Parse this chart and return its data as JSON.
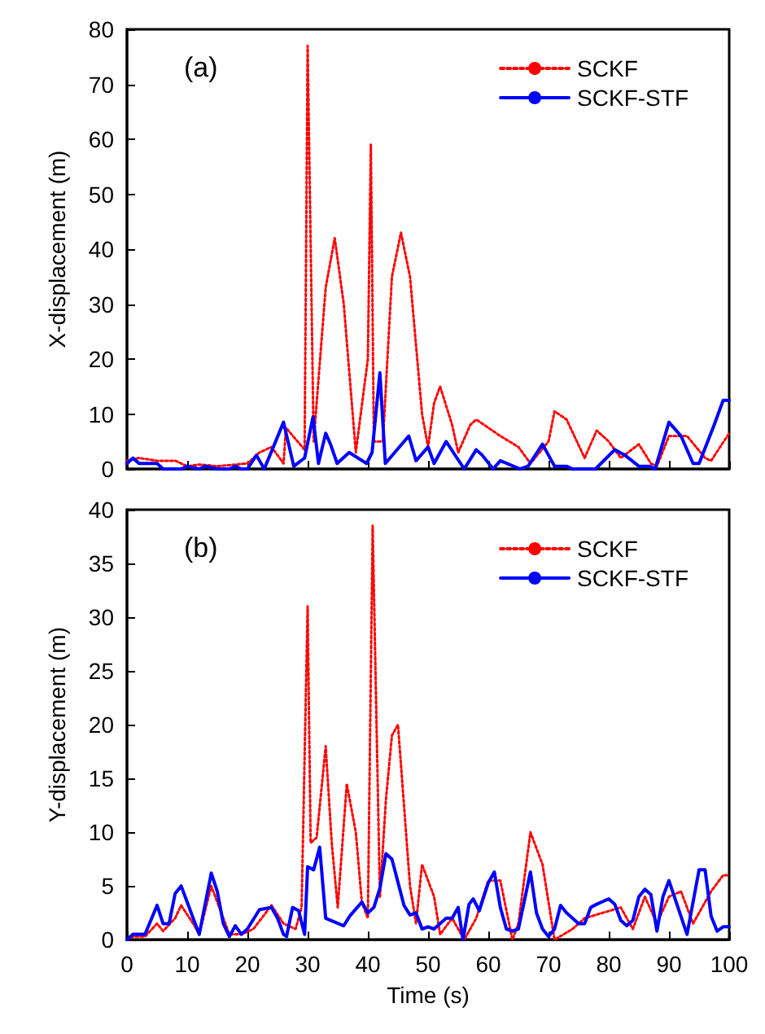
{
  "chart_data": [
    {
      "type": "line",
      "ylabel": "X-displacement (m)",
      "annotations": [
        "(a)"
      ],
      "xlim": [
        0,
        100
      ],
      "ylim": [
        0,
        80
      ],
      "xticks": [
        0,
        10,
        20,
        30,
        40,
        50,
        60,
        70,
        80,
        90,
        100
      ],
      "yticks": [
        0,
        10,
        20,
        30,
        40,
        50,
        60,
        70,
        80
      ],
      "tick_labels": "y",
      "legend": "top right",
      "marker": "none",
      "grid": false,
      "series": [
        {
          "name": "SCKF",
          "color": "#ff0000",
          "line_style": "dotted",
          "x": [
            0,
            2,
            5,
            8,
            10,
            12,
            15,
            18,
            20,
            22,
            24,
            26,
            26.4,
            29.5,
            30,
            31,
            33,
            34.5,
            36,
            38,
            40,
            40.5,
            41,
            42.5,
            44,
            45.5,
            47,
            49,
            50,
            51,
            52,
            54,
            55,
            57,
            58,
            62,
            65,
            67,
            70,
            71,
            73,
            76,
            78,
            80,
            82,
            85,
            87,
            88,
            90,
            93,
            96,
            97,
            100
          ],
          "values": [
            1.5,
            2,
            1.5,
            1.5,
            0.5,
            0.8,
            0.5,
            0.8,
            1,
            3,
            4,
            1,
            7.5,
            3.5,
            77,
            5,
            33,
            42,
            30,
            3,
            20,
            59,
            5,
            5,
            35,
            43,
            35,
            10,
            4,
            12,
            15,
            8,
            3,
            8,
            9,
            6,
            4,
            1,
            5,
            10.5,
            9,
            2,
            7,
            5,
            2,
            4.5,
            1,
            0.5,
            6,
            6,
            2,
            1.5,
            6.5
          ]
        },
        {
          "name": "SCKF-STF",
          "color": "#0000ff",
          "line_style": "solid",
          "x": [
            0,
            1,
            2,
            5,
            6,
            7,
            9,
            10,
            12,
            13,
            15,
            17,
            18,
            19,
            20,
            21.5,
            22.8,
            26,
            27.7,
            29.5,
            30.9,
            31.8,
            33,
            33.8,
            34.9,
            36.9,
            39.8,
            40.7,
            42,
            42.9,
            46.8,
            48,
            50,
            51,
            53,
            56,
            58,
            59,
            60.8,
            62,
            65.3,
            66.6,
            69,
            71,
            73,
            74,
            77.8,
            81,
            82.7,
            85,
            86.8,
            87.7,
            90,
            92,
            94,
            95,
            97.5,
            99,
            100
          ],
          "values": [
            1,
            2,
            1,
            1,
            0,
            0,
            0,
            0.5,
            0,
            0.5,
            0,
            0,
            0.5,
            0,
            0,
            2.5,
            0,
            8.5,
            0.5,
            2,
            9.5,
            1,
            6.5,
            4.5,
            1,
            3,
            1,
            3,
            17.5,
            1,
            6,
            1.5,
            4,
            1,
            5,
            0,
            3.5,
            2.5,
            0,
            1.5,
            0,
            0.5,
            4.5,
            0.5,
            0.5,
            0,
            0,
            3.5,
            2.5,
            0.5,
            0.5,
            0,
            8.5,
            6,
            1,
            1,
            8,
            12.5,
            12.5
          ]
        }
      ]
    },
    {
      "type": "line",
      "xlabel": "Time (s)",
      "ylabel": "Y-displacement (m)",
      "annotations": [
        "(b)"
      ],
      "xlim": [
        0,
        100
      ],
      "ylim": [
        0,
        40
      ],
      "xticks": [
        0,
        10,
        20,
        30,
        40,
        50,
        60,
        70,
        80,
        90,
        100
      ],
      "yticks": [
        0,
        5,
        10,
        15,
        20,
        25,
        30,
        35,
        40
      ],
      "legend": "top right",
      "marker": "none",
      "grid": false,
      "series": [
        {
          "name": "SCKF",
          "color": "#ff0000",
          "line_style": "dotted",
          "x": [
            0,
            1,
            3,
            5,
            6,
            8,
            9,
            11,
            12,
            14,
            15,
            17,
            19,
            21,
            24,
            26,
            28,
            29,
            30,
            30.5,
            31.5,
            33,
            34,
            35,
            36.5,
            38,
            39,
            40,
            40.8,
            42,
            43,
            44,
            45,
            47,
            48,
            49,
            51,
            52,
            54,
            56,
            58,
            60,
            62,
            64,
            65,
            67,
            69,
            71,
            74,
            76,
            79,
            82,
            84,
            86,
            88,
            90,
            92,
            94,
            97,
            99,
            100
          ],
          "values": [
            0,
            0.3,
            0.3,
            1.5,
            0.8,
            2,
            3.2,
            1.5,
            0.5,
            5,
            3.5,
            0.5,
            0.5,
            1,
            3.2,
            1.5,
            1,
            3,
            31,
            9,
            9.5,
            18,
            9,
            3,
            14.5,
            10,
            3.5,
            2,
            38.5,
            4,
            13,
            19,
            20,
            5,
            1.5,
            7,
            4,
            0.5,
            2,
            0,
            2,
            5.5,
            5.5,
            0,
            1.5,
            10,
            7,
            0,
            1,
            2,
            2.5,
            3,
            1,
            4,
            1.5,
            4,
            4.5,
            1.5,
            4.5,
            6,
            6
          ]
        },
        {
          "name": "SCKF-STF",
          "color": "#0000ff",
          "line_style": "solid",
          "x": [
            0,
            1,
            2,
            3,
            5,
            6,
            7,
            8,
            9,
            10,
            12,
            14,
            15,
            16,
            17,
            18,
            19,
            20,
            22,
            24,
            25,
            26,
            26.5,
            27.5,
            28.5,
            29.5,
            30,
            31,
            32,
            33,
            36,
            37,
            39,
            40,
            41,
            42,
            43,
            44,
            46,
            47,
            48,
            49,
            50,
            51,
            53,
            54,
            55,
            55.8,
            56.8,
            57.5,
            58.5,
            60,
            61,
            62,
            63,
            64,
            65,
            67,
            68,
            69,
            70,
            71,
            72,
            73,
            75,
            76,
            77,
            78,
            80,
            81,
            82,
            83,
            84,
            85,
            86,
            87,
            88,
            89,
            90,
            93,
            95,
            96,
            97,
            98,
            99,
            100
          ],
          "values": [
            0,
            0.5,
            0.5,
            0.5,
            3.2,
            1.5,
            1.5,
            4.3,
            5,
            3.5,
            0.5,
            6.2,
            4.5,
            1.5,
            0.3,
            1.3,
            0.5,
            1,
            2.8,
            3,
            2,
            0.5,
            0.3,
            3,
            2.7,
            0.5,
            6.8,
            6.5,
            8.6,
            2,
            1.3,
            2.2,
            3.5,
            2.5,
            3,
            4.8,
            8,
            7.5,
            3.2,
            2.3,
            2.5,
            1,
            1.2,
            1,
            2,
            2,
            3,
            0,
            3.3,
            3.8,
            2.7,
            5.3,
            6.3,
            3,
            1,
            0.8,
            1,
            6.3,
            2.5,
            1,
            0.3,
            1,
            3.2,
            2.5,
            1.5,
            1.5,
            3,
            3.3,
            3.8,
            3.3,
            1.8,
            1.3,
            1.8,
            4,
            4.7,
            4.2,
            0.8,
            4,
            5.5,
            0.5,
            6.5,
            6.5,
            2.2,
            0.8,
            1.2,
            1.2
          ]
        }
      ]
    }
  ]
}
